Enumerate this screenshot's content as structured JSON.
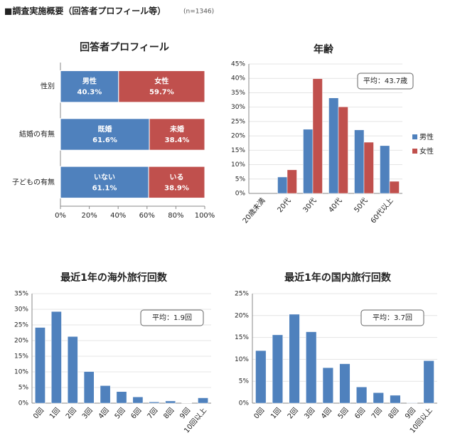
{
  "header": {
    "title": "■調査実施概要（回答者プロフィール等）",
    "note": "(n=1346)"
  },
  "chart_data": [
    {
      "type": "stacked_bar_h",
      "title": "回答者プロフィール",
      "categories": [
        "性別",
        "結婚の有無",
        "子どもの有無"
      ],
      "series": [
        {
          "color": "#4f81bd",
          "names": [
            "男性",
            "既婚",
            "いない"
          ],
          "values": [
            40.3,
            61.6,
            61.1
          ],
          "value_labels": [
            "40.3%",
            "61.6%",
            "61.1%"
          ]
        },
        {
          "color": "#c0504d",
          "names": [
            "女性",
            "未婚",
            "いる"
          ],
          "values": [
            59.7,
            38.4,
            38.9
          ],
          "value_labels": [
            "59.7%",
            "38.4%",
            "38.9%"
          ]
        }
      ],
      "xlim": [
        0,
        100
      ],
      "xticks": [
        {
          "value": 0,
          "label": "0%"
        },
        {
          "value": 20,
          "label": "20%"
        },
        {
          "value": 40,
          "label": "40%"
        },
        {
          "value": 60,
          "label": "60%"
        },
        {
          "value": 80,
          "label": "80%"
        },
        {
          "value": 100,
          "label": "100%"
        }
      ],
      "grid": false
    },
    {
      "type": "bar",
      "title": "年齢",
      "annotation": "平均：43.7歳",
      "categories": [
        "20歳未満",
        "20代",
        "30代",
        "40代",
        "50代",
        "60代以上"
      ],
      "series": [
        {
          "name": "男性",
          "color": "#4f81bd",
          "values": [
            0,
            5.7,
            22.3,
            33.2,
            22.1,
            16.6
          ]
        },
        {
          "name": "女性",
          "color": "#c0504d",
          "values": [
            0,
            8.2,
            39.9,
            30.1,
            17.8,
            4.2
          ]
        }
      ],
      "ylim": [
        0,
        45
      ],
      "yticks": [
        {
          "value": 0,
          "label": "0%"
        },
        {
          "value": 5,
          "label": "5%"
        },
        {
          "value": 10,
          "label": "10%"
        },
        {
          "value": 15,
          "label": "15%"
        },
        {
          "value": 20,
          "label": "20%"
        },
        {
          "value": 25,
          "label": "25%"
        },
        {
          "value": 30,
          "label": "30%"
        },
        {
          "value": 35,
          "label": "35%"
        },
        {
          "value": 40,
          "label": "40%"
        },
        {
          "value": 45,
          "label": "45%"
        }
      ],
      "grid": true,
      "legend": "right"
    },
    {
      "type": "bar",
      "title": "最近1年の海外旅行回数",
      "annotation": "平均：1.9回",
      "categories": [
        "0回",
        "1回",
        "2回",
        "3回",
        "4回",
        "5回",
        "6回",
        "7回",
        "8回",
        "9回",
        "10回以上"
      ],
      "series": [
        {
          "color": "#4f81bd",
          "values": [
            24.2,
            29.3,
            21.3,
            10.1,
            5.6,
            3.7,
            2.0,
            0.4,
            0.7,
            0.1,
            1.7
          ]
        }
      ],
      "ylim": [
        0,
        35
      ],
      "yticks": [
        {
          "value": 0,
          "label": "0%"
        },
        {
          "value": 5,
          "label": "5%"
        },
        {
          "value": 10,
          "label": "10%"
        },
        {
          "value": 15,
          "label": "15%"
        },
        {
          "value": 20,
          "label": "20%"
        },
        {
          "value": 25,
          "label": "25%"
        },
        {
          "value": 30,
          "label": "30%"
        },
        {
          "value": 35,
          "label": "35%"
        }
      ],
      "grid": true
    },
    {
      "type": "bar",
      "title": "最近1年の国内旅行回数",
      "annotation": "平均：3.7回",
      "categories": [
        "0回",
        "1回",
        "2回",
        "3回",
        "4回",
        "5回",
        "6回",
        "7回",
        "8回",
        "9回",
        "10回以上"
      ],
      "series": [
        {
          "color": "#4f81bd",
          "values": [
            12.0,
            15.6,
            20.3,
            16.3,
            8.1,
            9.0,
            3.7,
            2.4,
            1.8,
            0.1,
            9.7
          ]
        }
      ],
      "ylim": [
        0,
        25
      ],
      "yticks": [
        {
          "value": 0,
          "label": "0%"
        },
        {
          "value": 5,
          "label": "5%"
        },
        {
          "value": 10,
          "label": "10%"
        },
        {
          "value": 15,
          "label": "15%"
        },
        {
          "value": 20,
          "label": "20%"
        },
        {
          "value": 25,
          "label": "25%"
        }
      ],
      "grid": true
    }
  ]
}
